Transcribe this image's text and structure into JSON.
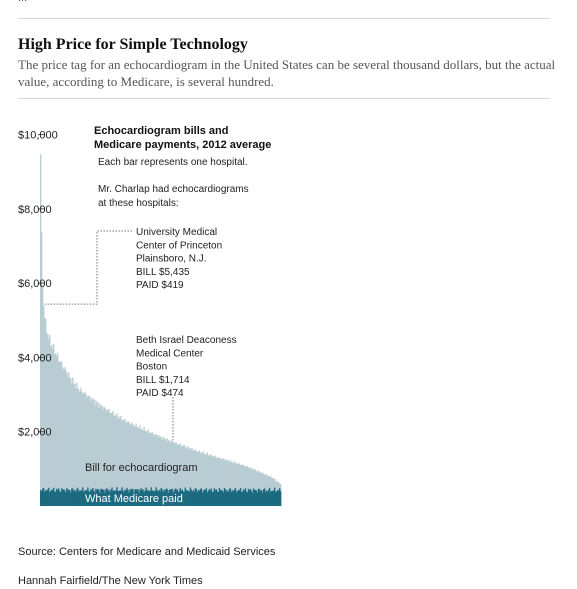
{
  "header": {
    "crop_text": "...",
    "headline": "High Price for Simple Technology",
    "dek": "The price tag for an echocardiogram in the United States can be several thousand dollars, but the actual value, according to Medicare, is several hundred."
  },
  "chart_data": {
    "type": "area",
    "title_lines": [
      "Echocardiogram bills and",
      "Medicare payments, 2012 average"
    ],
    "subtitle": "Each bar represents one hospital.",
    "intro_lines": [
      "Mr. Charlap had echocardiograms",
      "at these hospitals:"
    ],
    "ylim": [
      0,
      10500
    ],
    "y_ticks": [
      {
        "value": 2000,
        "label": "$2,000"
      },
      {
        "value": 4000,
        "label": "$4,000"
      },
      {
        "value": 6000,
        "label": "$6,000"
      },
      {
        "value": 8000,
        "label": "$8,000"
      },
      {
        "value": 10000,
        "label": "$10,000"
      }
    ],
    "grid": false,
    "hospital_rank_range": [
      0,
      1
    ],
    "series": [
      {
        "name": "Bill for echocardiogram",
        "color": "#b8ccd3",
        "x": [
          0,
          0.003,
          0.006,
          0.01,
          0.015,
          0.02,
          0.03,
          0.04,
          0.05,
          0.07,
          0.1,
          0.13,
          0.16,
          0.2,
          0.25,
          0.3,
          0.35,
          0.4,
          0.45,
          0.5,
          0.55,
          0.6,
          0.65,
          0.7,
          0.75,
          0.8,
          0.85,
          0.9,
          0.93,
          0.96,
          0.98,
          1
        ],
        "values": [
          10300,
          9100,
          7300,
          6000,
          5400,
          5000,
          4650,
          4450,
          4300,
          4050,
          3700,
          3400,
          3150,
          2950,
          2700,
          2500,
          2300,
          2150,
          2000,
          1850,
          1720,
          1600,
          1480,
          1380,
          1280,
          1180,
          1080,
          950,
          860,
          780,
          680,
          580
        ]
      },
      {
        "name": "What Medicare paid",
        "color": "#1d6a80",
        "x": [
          0,
          0.5,
          1
        ],
        "values": [
          430,
          430,
          420
        ]
      }
    ],
    "annotations": [
      {
        "lines": [
          "University Medical",
          "Center of Princeton",
          "Plainsboro, N.J.",
          "BILL $5,435",
          "PAID $419"
        ],
        "x": 0.02,
        "bill": 5435,
        "paid": 419
      },
      {
        "lines": [
          "Beth Israel Deaconess",
          "Medical Center",
          "Boston",
          "BILL $1,714",
          "PAID $474"
        ],
        "x": 0.55,
        "bill": 1714,
        "paid": 474
      }
    ]
  },
  "footer": {
    "source": "Source: Centers for Medicare and Medicaid Services",
    "credit": "Hannah Fairfield/The New York Times"
  }
}
